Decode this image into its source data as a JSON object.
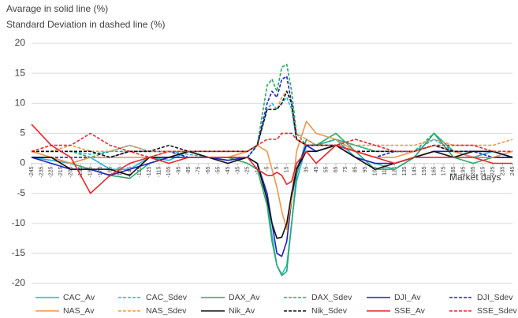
{
  "chart_data": {
    "type": "line",
    "title": "Avarage in solid line (%)",
    "subtitle": "Standard Deviation in dashed line (%)",
    "annotation": "Market days",
    "grid": true,
    "legend": "bottom",
    "xlim": [
      -245,
      245
    ],
    "xticks": [
      -245,
      -235,
      -225,
      -215,
      -205,
      -195,
      -185,
      -175,
      -165,
      -155,
      -145,
      -135,
      -125,
      -115,
      -105,
      -95,
      -85,
      -75,
      -65,
      -55,
      -45,
      -35,
      -25,
      -15,
      -5,
      5,
      15,
      25,
      35,
      45,
      55,
      65,
      75,
      85,
      95,
      105,
      115,
      125,
      135,
      145,
      155,
      165,
      175,
      185,
      195,
      205,
      215,
      225,
      235,
      245
    ],
    "ylim": [
      -20,
      20
    ],
    "yticks": [
      -20,
      -15,
      -10,
      -5,
      0,
      5,
      10,
      15,
      20
    ],
    "x": [
      -245,
      -225,
      -205,
      -185,
      -165,
      -145,
      -125,
      -105,
      -85,
      -65,
      -45,
      -25,
      -15,
      -5,
      0,
      5,
      10,
      15,
      20,
      25,
      35,
      45,
      65,
      85,
      105,
      125,
      145,
      165,
      185,
      205,
      225,
      245
    ],
    "series": [
      {
        "name": "CAC_Av",
        "color": "#1fb5d6",
        "dashed": false,
        "values": [
          1,
          0.5,
          0,
          1,
          -1,
          -1,
          1,
          0.5,
          2,
          1,
          0.5,
          1,
          0,
          -6,
          -12,
          -17,
          -18.5,
          -17,
          -10,
          -3,
          3,
          3,
          4,
          1,
          0,
          -1,
          1,
          5,
          2,
          1,
          2,
          1
        ]
      },
      {
        "name": "CAC_Sdev",
        "color": "#1fb5d6",
        "dashed": true,
        "values": [
          2,
          2,
          2,
          1.5,
          2,
          3,
          2,
          2,
          1.5,
          1,
          1,
          1,
          3,
          9,
          10,
          9,
          10,
          11,
          9,
          4,
          3,
          3,
          4,
          3,
          2,
          2,
          2,
          4,
          2,
          2,
          2,
          1
        ]
      },
      {
        "name": "DAX_Av",
        "color": "#2aa86a",
        "dashed": false,
        "values": [
          1,
          1,
          0,
          -1,
          -2,
          -2.5,
          0,
          1,
          2,
          1,
          1,
          0,
          -1,
          -7,
          -13,
          -17,
          -18.7,
          -18,
          -10,
          -2,
          4,
          3,
          5,
          2,
          -1,
          -1,
          1,
          5,
          1,
          0,
          1,
          1
        ]
      },
      {
        "name": "DAX_Sdev",
        "color": "#2aa86a",
        "dashed": true,
        "values": [
          2,
          2,
          2,
          1,
          2,
          2,
          2,
          2,
          2,
          1,
          1,
          1,
          3,
          13,
          14,
          12,
          16,
          16.5,
          12,
          5,
          3,
          3,
          4,
          3,
          2,
          2,
          2,
          5,
          2,
          2,
          2,
          1
        ]
      },
      {
        "name": "DJI_Av",
        "color": "#2020c0",
        "dashed": false,
        "values": [
          1,
          0,
          -1,
          -1,
          -2,
          -1,
          0,
          1,
          1,
          1,
          0.5,
          1,
          0,
          -5,
          -10,
          -15,
          -15.5,
          -13,
          -6,
          -1,
          3,
          2,
          3,
          1,
          0,
          0,
          1,
          2,
          2,
          1,
          1,
          1
        ]
      },
      {
        "name": "DJI_Sdev",
        "color": "#2020c0",
        "dashed": true,
        "values": [
          1,
          1,
          1,
          1,
          1,
          2,
          2,
          2,
          1,
          1,
          1,
          1,
          3,
          10,
          12,
          11,
          14,
          14.5,
          10,
          4,
          3,
          2,
          3,
          2,
          1,
          2,
          2,
          3,
          2,
          2,
          1,
          1
        ]
      },
      {
        "name": "NAS_Av",
        "color": "#f0954a",
        "dashed": false,
        "values": [
          2,
          1,
          0,
          1,
          1,
          1,
          1,
          2,
          2,
          1,
          1,
          2,
          3,
          2,
          -1,
          -4,
          -8,
          -11,
          -6,
          2,
          7,
          5,
          4,
          2,
          1,
          1,
          2,
          3,
          2,
          1,
          1,
          2
        ]
      },
      {
        "name": "NAS_Sdev",
        "color": "#f0954a",
        "dashed": true,
        "values": [
          2,
          2,
          3,
          2,
          2,
          3,
          2,
          2,
          2,
          2,
          2,
          2,
          3,
          9,
          9,
          9,
          11,
          12,
          10,
          5,
          4,
          3,
          3,
          3,
          3,
          3,
          3,
          4,
          3,
          3,
          3,
          4
        ]
      },
      {
        "name": "Nik_Av",
        "color": "#111111",
        "dashed": false,
        "values": [
          1,
          1,
          -1,
          -1,
          -1,
          -2,
          1,
          1,
          2,
          1,
          0,
          1,
          0,
          -6,
          -10,
          -12.5,
          -12.3,
          -10,
          -5,
          -1,
          2,
          2,
          3,
          1,
          -1,
          0,
          1,
          2,
          1,
          2,
          2,
          1
        ]
      },
      {
        "name": "Nik_Sdev",
        "color": "#111111",
        "dashed": true,
        "values": [
          2,
          2,
          2,
          2,
          1,
          2,
          2,
          3,
          2,
          2,
          2,
          2,
          3,
          9,
          9,
          9,
          10,
          12,
          10,
          4,
          3,
          3,
          3,
          2,
          2,
          2,
          2,
          3,
          2,
          2,
          2,
          1
        ]
      },
      {
        "name": "SSE_Av",
        "color": "#e8262a",
        "dashed": false,
        "values": [
          6.5,
          3,
          1,
          -5,
          -2,
          0,
          1,
          0,
          1,
          1,
          1,
          1,
          -1,
          -2,
          -2,
          -1.5,
          -2,
          -3.5,
          -3,
          0,
          2,
          0,
          3,
          2,
          1,
          0,
          1,
          1,
          1,
          1,
          0,
          0
        ]
      },
      {
        "name": "SSE_Sdev",
        "color": "#e8262a",
        "dashed": true,
        "values": [
          2,
          3,
          3,
          5,
          3,
          2,
          1,
          2,
          2,
          2,
          2,
          2,
          3,
          4,
          4,
          4,
          5,
          5,
          5,
          4,
          3,
          3,
          3,
          4,
          3,
          2,
          2,
          3,
          3,
          3,
          2,
          2
        ]
      }
    ]
  }
}
